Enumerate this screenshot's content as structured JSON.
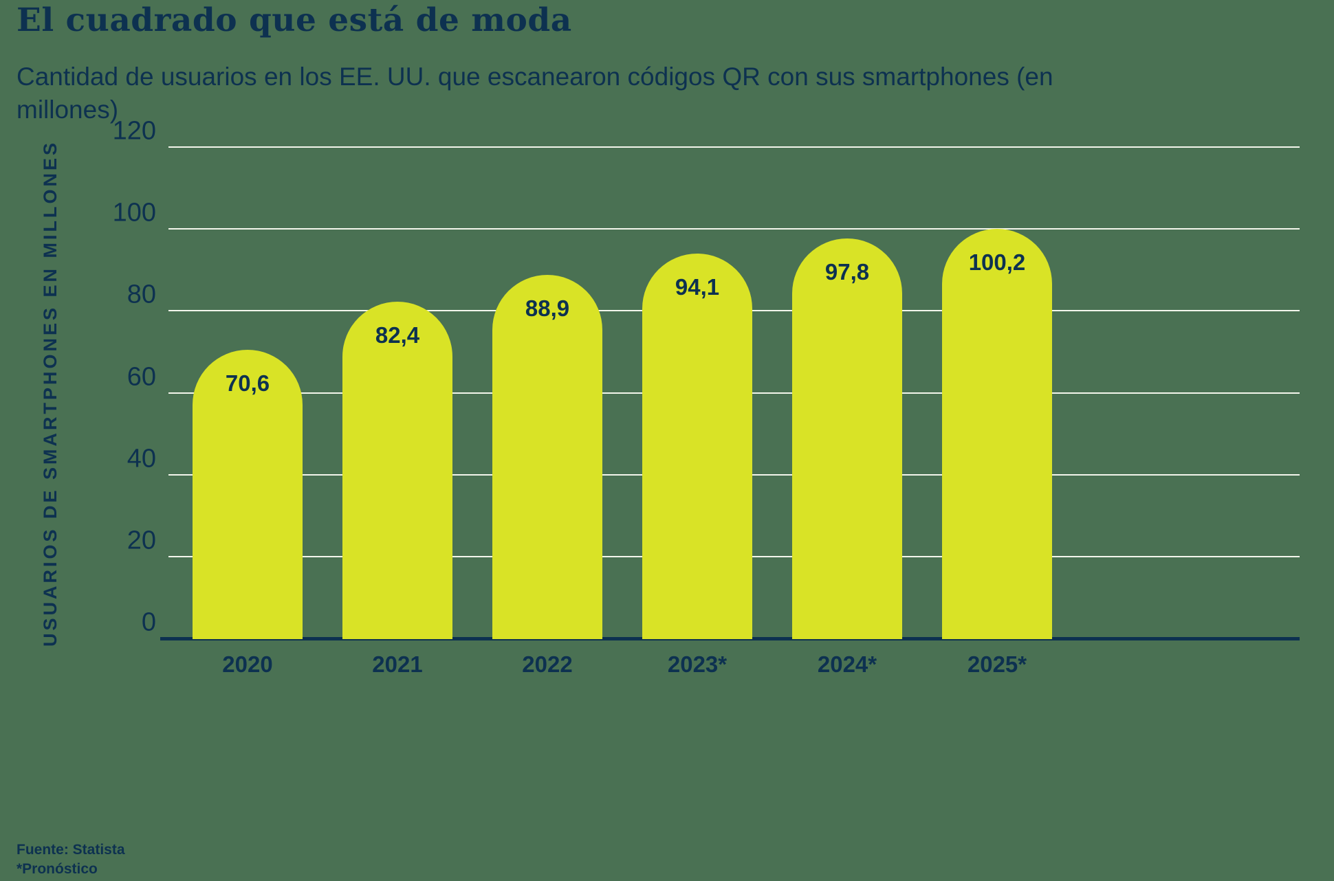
{
  "header": {
    "title": "El cuadrado que está de moda",
    "subtitle": "Cantidad de usuarios en los EE. UU. que escanearon códigos QR con sus smartphones (en millones)"
  },
  "footer": {
    "source": "Fuente: Statista",
    "footnote": "*Pronóstico"
  },
  "colors": {
    "background": "#4a7153",
    "bar": "#d9e326",
    "text": "#0d3150",
    "gridline": "#f4f6ec"
  },
  "chart_data": {
    "type": "bar",
    "title": "El cuadrado que está de moda",
    "subtitle": "Cantidad de usuarios en los EE. UU. que escanearon códigos QR con sus smartphones (en millones)",
    "categories": [
      "2020",
      "2021",
      "2022",
      "2023*",
      "2024*",
      "2025*"
    ],
    "values": [
      70.6,
      82.4,
      88.9,
      94.1,
      97.8,
      100.2
    ],
    "value_labels": [
      "70,6",
      "82,4",
      "88,9",
      "94,1",
      "97,8",
      "100,2"
    ],
    "xlabel": "",
    "ylabel": "USUARIOS DE SMARTPHONES EN MILLONES",
    "yticks": [
      0,
      20,
      40,
      60,
      80,
      100,
      120
    ],
    "ylim": [
      0,
      120
    ],
    "grid": true,
    "legend": false,
    "source": "Fuente: Statista",
    "footnote": "*Pronóstico"
  }
}
